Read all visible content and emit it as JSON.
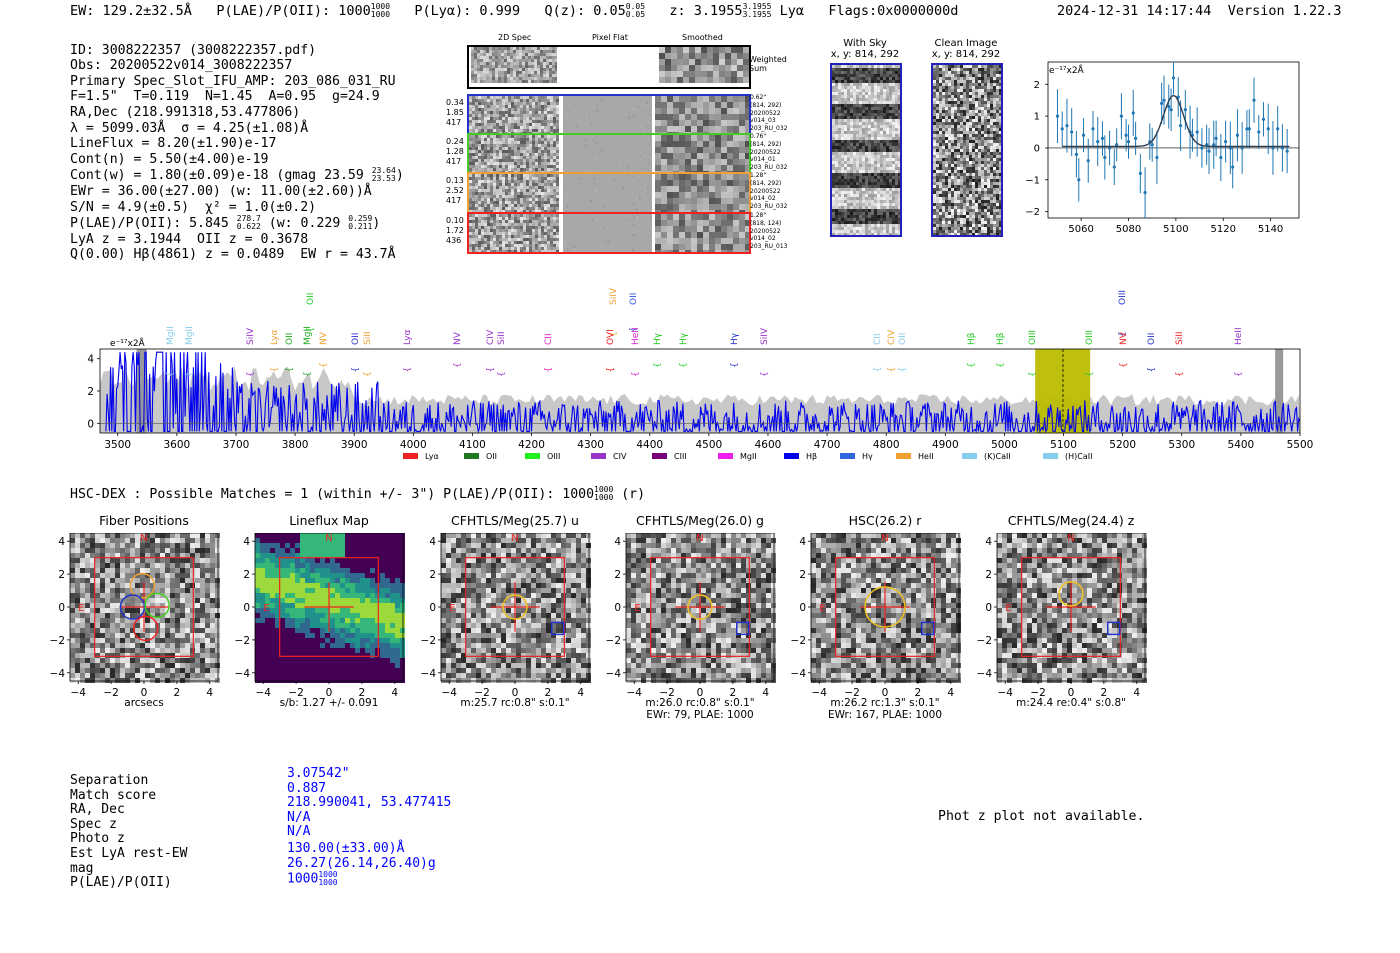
{
  "header": {
    "ew": "EW: 129.2±32.5Å",
    "plae_label": "P(LAE)/P(OII): 1000",
    "plae_hi": "1000",
    "plae_lo": "1000",
    "plya": "P(Lyα): 0.999",
    "qz_label": "Q(z): 0.05",
    "qz_hi": "0.05",
    "qz_lo": "0.05",
    "z_label": "z: 3.1955",
    "z_hi": "3.1955",
    "z_lo": "3.1955",
    "z_line": "Lyα",
    "flags": "Flags:0x0000000d",
    "timestamp": "2024-12-31 14:17:44",
    "version": "Version 1.22.3"
  },
  "info_lines": [
    "ID: 3008222357 (3008222357.pdf)",
    "Obs: 20200522v014_3008222357",
    "Primary Spec_Slot_IFU_AMP: 203_086_031_RU",
    "F=1.5\"  T=0.119  N=1.45  A=0.95  g=24.9",
    "RA,Dec (218.991318,53.477806)",
    "λ = 5099.03Å  σ = 4.25(±1.08)Å",
    "LineFlux = 8.20(±1.90)e-17",
    "Cont(n) = 5.50(±4.00)e-19"
  ],
  "info_contw": "Cont(w) = 1.80(±0.09)e-18 (gmag 23.59",
  "info_contw_hi": "23.64",
  "info_contw_lo": "23.53",
  "info_contw_end": ")",
  "info_ewr": "EWr = 36.00(±27.00) (w: 11.00(±2.60))Å",
  "info_sn": "S/N = 4.9(±0.5)  χ² = 1.0(±0.2)",
  "info_plae": "P(LAE)/P(OII): 5.845",
  "info_plae_hi": "278.7",
  "info_plae_lo": "0.622",
  "info_plae_w": "(w: 0.229",
  "info_plae_w_hi": "0.259",
  "info_plae_w_lo": "0.211",
  "info_plae_end": ")",
  "info_lya": "LyA z = 3.1944  OII z = 0.3678",
  "info_q": "Q(0.00) Hβ(4861) z = 0.0489  EW r = 43.7Å",
  "spec2d": {
    "col_titles": [
      "2D Spec",
      "Pixel Flat",
      "Smoothed"
    ],
    "weighted_sum": "Weighted Sum",
    "rows": [
      {
        "l1": "0.34",
        "l2": "1.85",
        "l3": "417",
        "r1": "0.62\"",
        "r2": "(814, 292)",
        "r3": "20200522",
        "r4": "v014_03",
        "r5": "203_RU_032",
        "color": "#2233cc"
      },
      {
        "l1": "0.24",
        "l2": "1.28",
        "l3": "417",
        "r1": "0.76\"",
        "r2": "(814, 292)",
        "r3": "20200522",
        "r4": "v014_01",
        "r5": "203_RU_032",
        "color": "#44cc22"
      },
      {
        "l1": "0.13",
        "l2": "2.52",
        "l3": "417",
        "r1": "1.28\"",
        "r2": "(814, 292)",
        "r3": "20200522",
        "r4": "v014_02",
        "r5": "203_RU_032",
        "color": "#f0a030"
      },
      {
        "l1": "0.10",
        "l2": "1.72",
        "l3": "436",
        "r1": "1.28\"",
        "r2": "(818, 124)",
        "r3": "20200522",
        "r4": "v014_02",
        "r5": "203_RU_013",
        "color": "#ee2222"
      }
    ]
  },
  "with_sky": {
    "title": "With Sky",
    "coords": "x, y: 814, 292"
  },
  "clean_image": {
    "title": "Clean Image",
    "coords": "x, y: 814, 292"
  },
  "fit_plot": {
    "unit_label": "e⁻¹⁷x2Å",
    "xticks": [
      "5060",
      "5080",
      "5100",
      "5120",
      "5140"
    ],
    "yticks": [
      "2",
      "1",
      "0",
      "−1",
      "−2"
    ]
  },
  "spectrum": {
    "unit_label": "e⁻¹⁷x2Å",
    "xticks": [
      "3500",
      "3600",
      "3700",
      "3800",
      "3900",
      "4000",
      "4100",
      "4200",
      "4300",
      "4400",
      "4500",
      "4600",
      "4700",
      "4800",
      "4900",
      "5000",
      "5100",
      "5200",
      "5300",
      "5400",
      "5500"
    ],
    "yticks": [
      "4",
      "2",
      "0"
    ],
    "line_labels": [
      {
        "text": "MgII",
        "color": "#88ccee",
        "x": 169,
        "row": 1
      },
      {
        "text": "MgII",
        "color": "#88ccee",
        "x": 188,
        "row": 1
      },
      {
        "text": "SiIV",
        "color": "#9933cc",
        "x": 249,
        "row": 1
      },
      {
        "text": "Lyα",
        "color": "#f0a030",
        "x": 273,
        "row": 1
      },
      {
        "text": "OII",
        "color": "#22aa22",
        "x": 288,
        "row": 1
      },
      {
        "text": "MgII",
        "color": "#22aa22",
        "x": 306,
        "row": 1
      },
      {
        "text": "OII",
        "color": "#22cc22",
        "x": 309,
        "row": 0
      },
      {
        "text": "NV",
        "color": "#f0a030",
        "x": 322,
        "row": 1
      },
      {
        "text": "OII",
        "color": "#3333cc",
        "x": 354,
        "row": 1
      },
      {
        "text": "SiII",
        "color": "#f0a030",
        "x": 366,
        "row": 1
      },
      {
        "text": "Lyα",
        "color": "#9933cc",
        "x": 406,
        "row": 1
      },
      {
        "text": "NV",
        "color": "#9933cc",
        "x": 456,
        "row": 1
      },
      {
        "text": "CIV",
        "color": "#9933cc",
        "x": 489,
        "row": 1
      },
      {
        "text": "SiII",
        "color": "#9933cc",
        "x": 500,
        "row": 1
      },
      {
        "text": "CII",
        "color": "#dd22cc",
        "x": 547,
        "row": 1
      },
      {
        "text": "SiIV",
        "color": "#f0a030",
        "x": 612,
        "row": 0
      },
      {
        "text": "OVI",
        "color": "#ee2222",
        "x": 609,
        "row": 1
      },
      {
        "text": "OII",
        "color": "#3355ee",
        "x": 632,
        "row": 0
      },
      {
        "text": "HeII",
        "color": "#dd22cc",
        "x": 634,
        "row": 1
      },
      {
        "text": "Hγ",
        "color": "#22cc22",
        "x": 656,
        "row": 1
      },
      {
        "text": "Hγ",
        "color": "#22cc22",
        "x": 682,
        "row": 1
      },
      {
        "text": "Hγ",
        "color": "#2233cc",
        "x": 733,
        "row": 1
      },
      {
        "text": "SiIV",
        "color": "#9933cc",
        "x": 763,
        "row": 1
      },
      {
        "text": "CII",
        "color": "#88ccee",
        "x": 876,
        "row": 1
      },
      {
        "text": "CIV",
        "color": "#f0a030",
        "x": 890,
        "row": 1
      },
      {
        "text": "OII",
        "color": "#88ccee",
        "x": 901,
        "row": 1
      },
      {
        "text": "Hβ",
        "color": "#22cc22",
        "x": 970,
        "row": 1
      },
      {
        "text": "Hβ",
        "color": "#22cc22",
        "x": 999,
        "row": 1
      },
      {
        "text": "OIII",
        "color": "#22cc22",
        "x": 1031,
        "row": 1
      },
      {
        "text": "OIII",
        "color": "#22cc22",
        "x": 1088,
        "row": 1
      },
      {
        "text": "OIII",
        "color": "#2233cc",
        "x": 1121,
        "row": 0
      },
      {
        "text": "NV",
        "color": "#ee2222",
        "x": 1122,
        "row": 1
      },
      {
        "text": "OII",
        "color": "#2233cc",
        "x": 1150,
        "row": 1
      },
      {
        "text": "SiII",
        "color": "#ee2222",
        "x": 1178,
        "row": 1
      },
      {
        "text": "HeII",
        "color": "#9933cc",
        "x": 1237,
        "row": 1
      }
    ],
    "legend": [
      {
        "name": "Lyα",
        "color": "#ee2222"
      },
      {
        "name": "OII",
        "color": "#227722"
      },
      {
        "name": "OIII",
        "color": "#22ee22"
      },
      {
        "name": "CIV",
        "color": "#9933cc"
      },
      {
        "name": "CIII",
        "color": "#770077"
      },
      {
        "name": "MgII",
        "color": "#ee22ee"
      },
      {
        "name": "Hβ",
        "color": "#0000ee"
      },
      {
        "name": "Hγ",
        "color": "#3366dd"
      },
      {
        "name": "HeII",
        "color": "#f0a030"
      },
      {
        "name": "(K)CaII",
        "color": "#88ccee"
      },
      {
        "name": "(H)CaII",
        "color": "#88ccee"
      }
    ]
  },
  "matches": {
    "text": "HSC-DEX : Possible Matches = 1 (within +/- 3\")  P(LAE)/P(OII): 1000",
    "hi": "1000",
    "lo": "1000",
    "band": "(r)"
  },
  "cutouts": [
    {
      "title": "Fiber Positions",
      "cap1": "arcsecs",
      "cap2": ""
    },
    {
      "title": "Lineflux Map",
      "cap1": "s/b: 1.27 +/- 0.091",
      "cap2": ""
    },
    {
      "title": "CFHTLS/Meg(25.7) u",
      "cap1": "m:25.7 rc:0.8\"  s:0.1\"",
      "cap2": ""
    },
    {
      "title": "CFHTLS/Meg(26.0) g",
      "cap1": "m:26.0 rc:0.8\"  s:0.1\"",
      "cap2": "EWr: 79, PLAE: 1000"
    },
    {
      "title": "HSC(26.2) r",
      "cap1": "m:26.2 rc:1.3\"  s:0.1\"",
      "cap2": "EWr: 167, PLAE: 1000"
    },
    {
      "title": "CFHTLS/Meg(24.4) z",
      "cap1": "m:24.4  re:0.4\"  s:0.8\"",
      "cap2": ""
    }
  ],
  "cutout_axes": {
    "xticks": [
      "−4",
      "−2",
      "0",
      "2",
      "4"
    ],
    "yticks": [
      "4",
      "2",
      "0",
      "−2",
      "−4"
    ],
    "north": "N",
    "east": "E"
  },
  "match_table": {
    "labels": [
      "Separation",
      "Match score",
      "RA, Dec",
      "Spec z",
      "Photo z",
      "Est LyA rest-EW",
      "mag",
      "P(LAE)/P(OII)"
    ],
    "values": [
      "3.07542\"",
      "0.887",
      "218.990041, 53.477415",
      "N/A",
      "N/A",
      "130.00(±33.00)Å",
      "26.27(26.14,26.40)g",
      "1000"
    ],
    "plae_hi": "1000",
    "plae_lo": "1000"
  },
  "phot_z_note": "Phot z plot not available."
}
